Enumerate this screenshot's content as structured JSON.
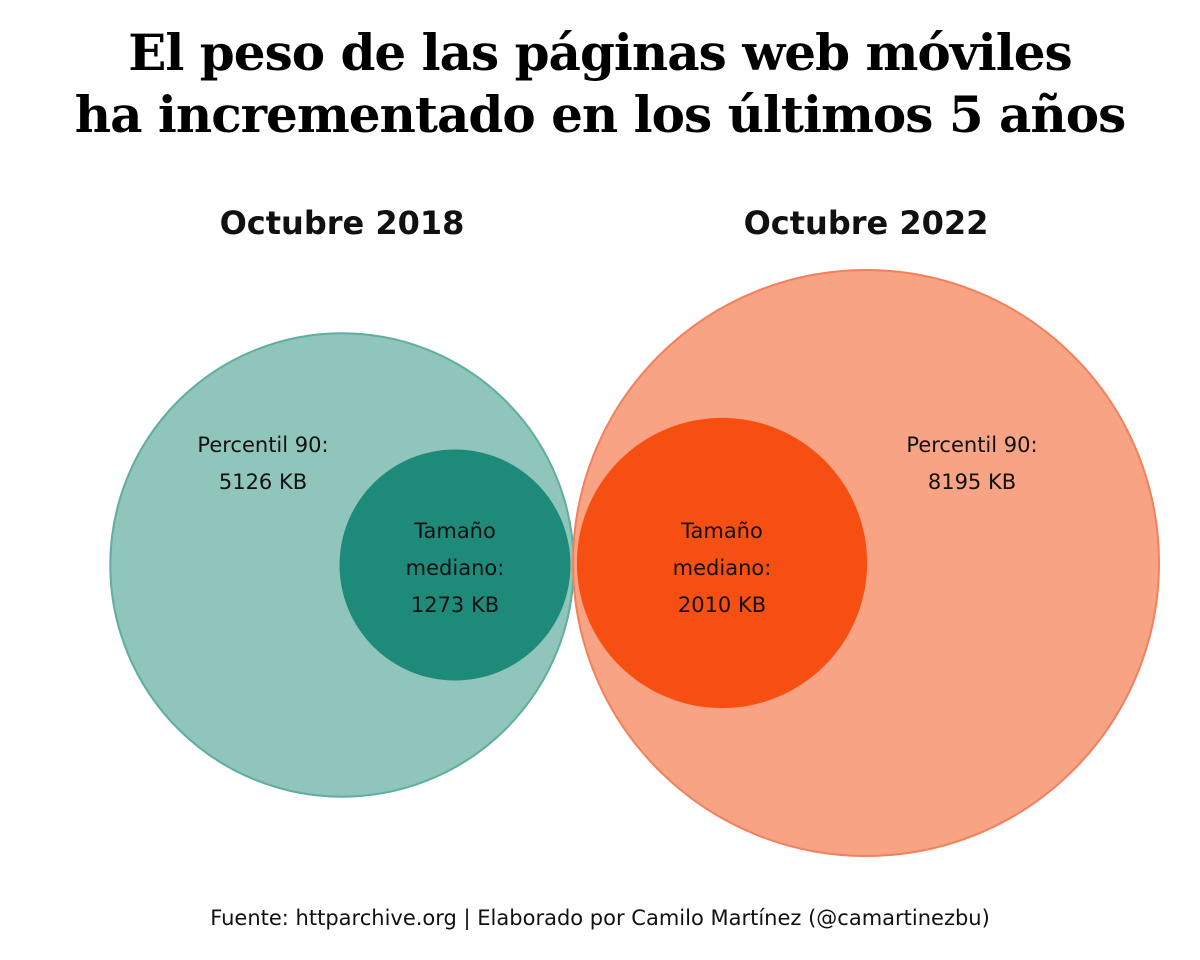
{
  "title": {
    "line1": "El peso de las páginas web móviles",
    "line2": "ha incrementado en los últimos 5 años"
  },
  "source": "Fuente: httparchive.org | Elaborado por Camilo Martínez (@camartinezbu)",
  "chart_data": {
    "type": "proportional-circles",
    "unit": "KB",
    "panels": [
      {
        "title": "Octubre 2018",
        "p90": {
          "label_line1": "Percentil 90:",
          "label_line2": "5126 KB",
          "value": 5126,
          "color": "#8fc5bb",
          "stroke": "#5fae9f"
        },
        "median": {
          "label_line1": "Tamaño",
          "label_line2": "mediano:",
          "label_line3": "1273 KB",
          "value": 1273,
          "color": "#1e8a79"
        }
      },
      {
        "title": "Octubre 2022",
        "p90": {
          "label_line1": "Percentil 90:",
          "label_line2": "8195 KB",
          "value": 8195,
          "color": "#f8a384",
          "stroke": "#f2805a"
        },
        "median": {
          "label_line1": "Tamaño",
          "label_line2": "mediano:",
          "label_line3": "2010 KB",
          "value": 2010,
          "color": "#f74f11"
        }
      }
    ]
  }
}
